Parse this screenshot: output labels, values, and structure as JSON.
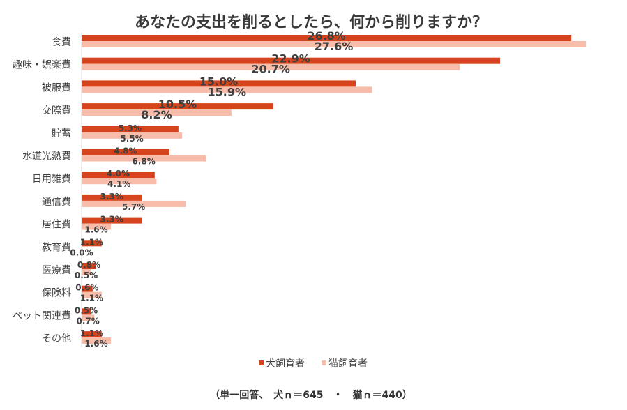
{
  "chart_data": {
    "type": "bar",
    "orientation": "horizontal",
    "title": "あなたの支出を削るとしたら、何から削りますか？",
    "categories": [
      "食費",
      "趣味・娯楽費",
      "被服費",
      "交際費",
      "貯蓄",
      "水道光熱費",
      "日用雑費",
      "通信費",
      "居住費",
      "教育費",
      "医療費",
      "保険料",
      "ペット関連費",
      "その他"
    ],
    "series": [
      {
        "name": "犬飼育者",
        "color": "#d5441c",
        "values": [
          26.8,
          22.9,
          15.0,
          10.5,
          5.3,
          4.8,
          4.0,
          3.3,
          3.3,
          1.1,
          0.8,
          0.6,
          0.5,
          1.1
        ],
        "labels": [
          "26.8%",
          "22.9%",
          "15.0%",
          "10.5%",
          "5.3%",
          "4.8%",
          "4.0%",
          "3.3%",
          "3.3%",
          "1.1%",
          "0.8%",
          "0.6%",
          "0.5%",
          "1.1%"
        ]
      },
      {
        "name": "猫飼育者",
        "color": "#f7bcaa",
        "values": [
          27.6,
          20.7,
          15.9,
          8.2,
          5.5,
          6.8,
          4.1,
          5.7,
          1.6,
          0.0,
          0.5,
          1.1,
          0.7,
          1.6
        ],
        "labels": [
          "27.6%",
          "20.7%",
          "15.9%",
          "8.2%",
          "5.5%",
          "6.8%",
          "4.1%",
          "5.7%",
          "1.6%",
          "0.0%",
          "0.5%",
          "1.1%",
          "0.7%",
          "1.6%"
        ]
      }
    ],
    "xlim": [
      0,
      30
    ],
    "grid": false,
    "legend": "bottom-center",
    "footnote": "（単一回答、　犬ｎ＝645　・　猫ｎ＝440）"
  }
}
